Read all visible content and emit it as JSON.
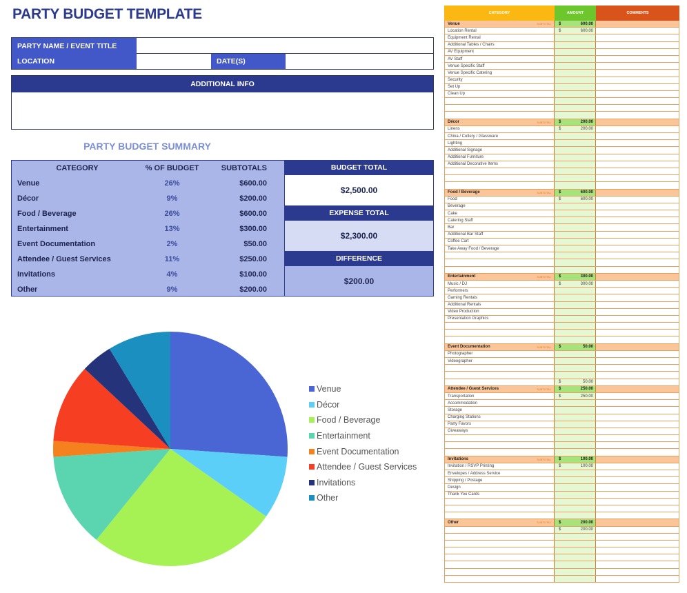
{
  "title": "PARTY BUDGET TEMPLATE",
  "info": {
    "party_name_label": "PARTY NAME / EVENT TITLE",
    "party_name_value": "",
    "location_label": "LOCATION",
    "location_value": "",
    "dates_label": "DATE(S)",
    "dates_value": "",
    "additional_info_label": "ADDITIONAL INFO",
    "additional_info_value": ""
  },
  "summary": {
    "title": "PARTY BUDGET SUMMARY",
    "headers": [
      "CATEGORY",
      "% OF BUDGET",
      "SUBTOTALS"
    ],
    "rows": [
      {
        "category": "Venue",
        "percent": "26%",
        "subtotal": "$600.00"
      },
      {
        "category": "Décor",
        "percent": "9%",
        "subtotal": "$200.00"
      },
      {
        "category": "Food / Beverage",
        "percent": "26%",
        "subtotal": "$600.00"
      },
      {
        "category": "Entertainment",
        "percent": "13%",
        "subtotal": "$300.00"
      },
      {
        "category": "Event Documentation",
        "percent": "2%",
        "subtotal": "$50.00"
      },
      {
        "category": "Attendee / Guest Services",
        "percent": "11%",
        "subtotal": "$250.00"
      },
      {
        "category": "Invitations",
        "percent": "4%",
        "subtotal": "$100.00"
      },
      {
        "category": "Other",
        "percent": "9%",
        "subtotal": "$200.00"
      }
    ],
    "budget_total_label": "BUDGET TOTAL",
    "budget_total": "$2,500.00",
    "expense_total_label": "EXPENSE TOTAL",
    "expense_total": "$2,300.00",
    "difference_label": "DIFFERENCE",
    "difference": "$200.00"
  },
  "chart_data": {
    "type": "pie",
    "categories": [
      "Venue",
      "Décor",
      "Food / Beverage",
      "Entertainment",
      "Event Documentation",
      "Attendee / Guest Services",
      "Invitations",
      "Other"
    ],
    "values": [
      600,
      200,
      600,
      300,
      50,
      250,
      100,
      200
    ],
    "colors": [
      "#4a66d4",
      "#5ccff9",
      "#a6f255",
      "#5ad5b0",
      "#f5801e",
      "#f53e22",
      "#25337a",
      "#1a8fc0"
    ],
    "legend": "right"
  },
  "detail": {
    "headers": {
      "category": "CATEGORY",
      "amount": "AMOUNT",
      "comments": "COMMENTS"
    },
    "header_colors": {
      "category": "#fbb813",
      "amount": "#6cc62c",
      "comments": "#d9541a"
    },
    "subtotal_label": "SUBTOTAL",
    "currency": "$",
    "sections": [
      {
        "name": "Venue",
        "subtotal": "600.00",
        "items": [
          {
            "label": "Location Rental",
            "amount": "600.00"
          },
          {
            "label": "Equipment Rental"
          },
          {
            "label": "Additional Tables / Chairs"
          },
          {
            "label": "AV Equipment"
          },
          {
            "label": "AV Staff"
          },
          {
            "label": "Venue Specific Staff"
          },
          {
            "label": "Venue Specific Catering"
          },
          {
            "label": "Security"
          },
          {
            "label": "Set Up"
          },
          {
            "label": "Clean Up"
          }
        ]
      },
      {
        "name": "Décor",
        "subtotal": "200.00",
        "items": [
          {
            "label": "Linens",
            "amount": "200.00"
          },
          {
            "label": "China / Cutlery / Glassware"
          },
          {
            "label": "Lighting"
          },
          {
            "label": "Additional Signage"
          },
          {
            "label": "Additional Furniture"
          },
          {
            "label": "Additional Decorative Items"
          }
        ]
      },
      {
        "name": "Food / Beverage",
        "subtotal": "600.00",
        "items": [
          {
            "label": "Food",
            "amount": "600.00"
          },
          {
            "label": "Beverage"
          },
          {
            "label": "Cake"
          },
          {
            "label": "Catering Staff"
          },
          {
            "label": "Bar"
          },
          {
            "label": "Additional Bar Staff"
          },
          {
            "label": "Coffee Cart"
          },
          {
            "label": "Take Away Food / Beverage"
          }
        ]
      },
      {
        "name": "Entertainment",
        "subtotal": "300.00",
        "items": [
          {
            "label": "Music / DJ",
            "amount": "300.00"
          },
          {
            "label": "Performers"
          },
          {
            "label": "Gaming Rentals"
          },
          {
            "label": "Additional Rentals"
          },
          {
            "label": "Video Production"
          },
          {
            "label": "Presentation Graphics"
          }
        ]
      },
      {
        "name": "Event Documentation",
        "subtotal": "50.00",
        "items": [
          {
            "label": "Photographer"
          },
          {
            "label": "Videographer"
          },
          {
            "label": ""
          },
          {
            "label": ""
          },
          {
            "label": "",
            "amount": "50.00"
          }
        ]
      },
      {
        "name": "Attendee / Guest Services",
        "subtotal": "250.00",
        "items": [
          {
            "label": "Transportation",
            "amount": "250.00"
          },
          {
            "label": "Accommodation"
          },
          {
            "label": "Storage"
          },
          {
            "label": "Charging Stations"
          },
          {
            "label": "Party Favors"
          },
          {
            "label": "Giveaways"
          }
        ]
      },
      {
        "name": "Invitations",
        "subtotal": "100.00",
        "items": [
          {
            "label": "Invitation / RSVP Printing",
            "amount": "100.00"
          },
          {
            "label": "Envelopes / Address Service"
          },
          {
            "label": "Shipping / Postage"
          },
          {
            "label": "Design"
          },
          {
            "label": "Thank You Cards"
          }
        ]
      },
      {
        "name": "Other",
        "subtotal": "200.00",
        "items": [
          {
            "label": "",
            "amount": "200.00"
          }
        ]
      }
    ]
  }
}
